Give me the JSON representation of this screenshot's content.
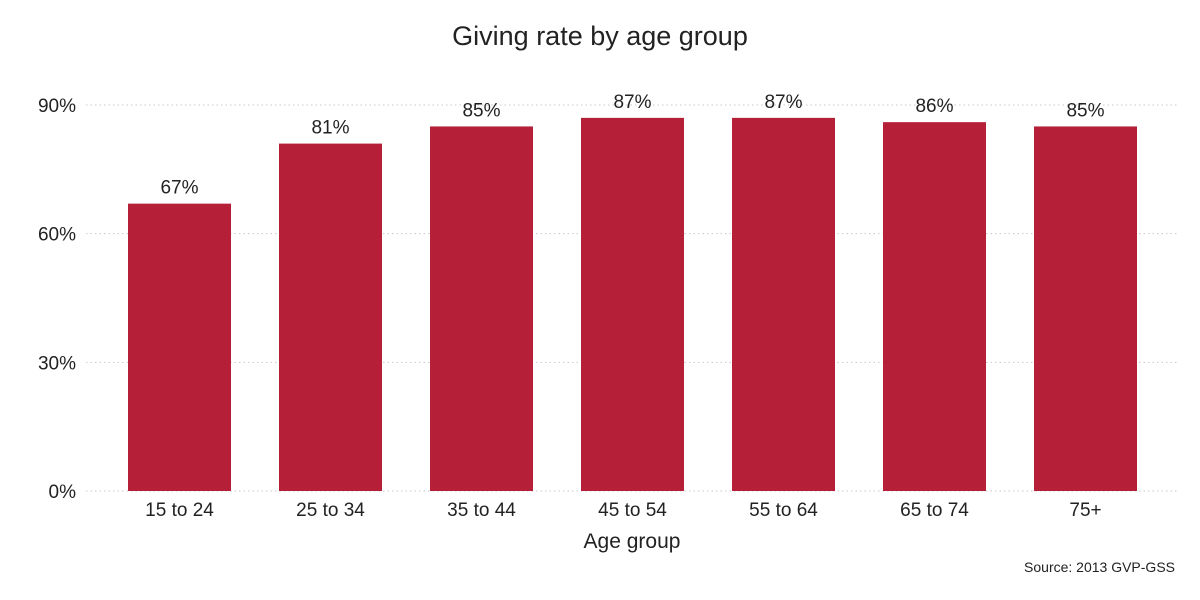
{
  "chart_data": {
    "type": "bar",
    "title": "Giving rate by age group",
    "xlabel": "Age group",
    "ylabel": "",
    "categories": [
      "15 to 24",
      "25 to 34",
      "35 to 44",
      "45 to 54",
      "55 to 64",
      "65 to 74",
      "75+"
    ],
    "values": [
      67,
      81,
      85,
      87,
      87,
      86,
      85
    ],
    "value_labels": [
      "67%",
      "81%",
      "85%",
      "87%",
      "87%",
      "86%",
      "85%"
    ],
    "ylim": [
      0,
      90
    ],
    "yticks": [
      0,
      30,
      60,
      90
    ],
    "ytick_labels": [
      "0%",
      "30%",
      "60%",
      "90%"
    ],
    "grid": true,
    "legend": "none",
    "source": "Source: 2013 GVP-GSS",
    "bar_color": "#b51f38"
  }
}
